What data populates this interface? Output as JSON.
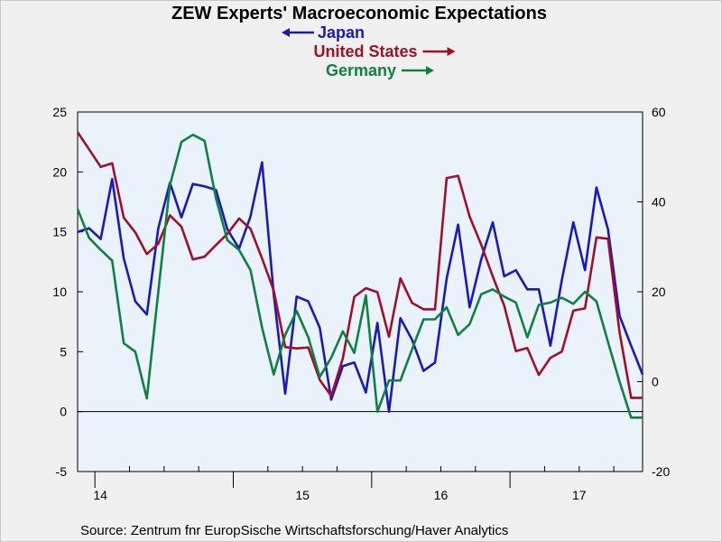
{
  "chart_data": {
    "type": "line",
    "title": "ZEW Experts' Macroeconomic Expectations",
    "source": "Source:  Zentrum fnr EuropSische Wirtschaftsforschung/Haver Analytics",
    "left_axis": {
      "ylim": [
        -5,
        25
      ],
      "ticks": [
        25,
        20,
        15,
        10,
        5,
        0,
        -5
      ]
    },
    "right_axis": {
      "ylim": [
        -20,
        60
      ],
      "ticks": [
        60,
        40,
        20,
        0,
        -20
      ]
    },
    "x_labels": [
      "14",
      "15",
      "16",
      "17"
    ],
    "x_range": [
      2013.875,
      2017.958
    ],
    "grid": false,
    "zero_line": true,
    "background": "#eaf2fc",
    "series": [
      {
        "name": "Japan",
        "axis": "left",
        "arrow": "left",
        "color": "#1a1ab4",
        "x": [
          2013.875,
          2013.958,
          2014.042,
          2014.125,
          2014.208,
          2014.292,
          2014.375,
          2014.458,
          2014.542,
          2014.625,
          2014.708,
          2014.792,
          2014.875,
          2014.958,
          2015.042,
          2015.125,
          2015.208,
          2015.292,
          2015.375,
          2015.458,
          2015.542,
          2015.625,
          2015.708,
          2015.792,
          2015.875,
          2015.958,
          2016.042,
          2016.125,
          2016.208,
          2016.292,
          2016.375,
          2016.458,
          2016.542,
          2016.625,
          2016.708,
          2016.792,
          2016.875,
          2016.958,
          2017.042,
          2017.125,
          2017.208,
          2017.292,
          2017.375,
          2017.458,
          2017.542,
          2017.625,
          2017.708,
          2017.792,
          2017.875,
          2017.958
        ],
        "values": [
          15.0,
          15.3,
          14.4,
          19.4,
          12.8,
          9.2,
          8.1,
          15.3,
          19.1,
          16.2,
          19.0,
          18.8,
          18.5,
          15.2,
          13.6,
          16.3,
          20.8,
          9.8,
          1.5,
          9.6,
          9.2,
          7.0,
          1.0,
          3.8,
          4.1,
          1.6,
          7.4,
          0.0,
          7.8,
          6.0,
          3.4,
          4.1,
          11.1,
          15.6,
          8.7,
          12.7,
          15.8,
          11.3,
          11.8,
          10.2,
          10.2,
          5.5,
          11.0,
          15.8,
          11.8,
          18.7,
          15.2,
          8.0,
          5.5,
          3.1
        ]
      },
      {
        "name": "United States",
        "axis": "right",
        "arrow": "right",
        "color": "#a0102a",
        "x": [
          2013.875,
          2013.958,
          2014.042,
          2014.125,
          2014.208,
          2014.292,
          2014.375,
          2014.458,
          2014.542,
          2014.625,
          2014.708,
          2014.792,
          2014.875,
          2014.958,
          2015.042,
          2015.125,
          2015.208,
          2015.292,
          2015.375,
          2015.458,
          2015.542,
          2015.625,
          2015.708,
          2015.792,
          2015.875,
          2015.958,
          2016.042,
          2016.125,
          2016.208,
          2016.292,
          2016.375,
          2016.458,
          2016.542,
          2016.625,
          2016.708,
          2016.792,
          2016.875,
          2016.958,
          2017.042,
          2017.125,
          2017.208,
          2017.292,
          2017.375,
          2017.458,
          2017.542,
          2017.625,
          2017.708,
          2017.792,
          2017.875,
          2017.958
        ],
        "values": [
          55.5,
          51.7,
          47.8,
          48.6,
          36.5,
          33.2,
          28.4,
          30.7,
          37.0,
          34.5,
          27.2,
          27.8,
          30.4,
          32.9,
          36.3,
          34.0,
          27.4,
          20.3,
          7.7,
          7.4,
          7.6,
          0.4,
          -3.2,
          5.2,
          18.9,
          20.8,
          19.9,
          10.0,
          23.0,
          17.5,
          16.1,
          16.1,
          45.3,
          45.8,
          36.7,
          30.5,
          23.4,
          16.9,
          6.8,
          7.5,
          1.5,
          5.3,
          6.7,
          15.8,
          16.3,
          32.1,
          31.8,
          11.0,
          -3.6,
          -3.6
        ]
      },
      {
        "name": "Germany",
        "axis": "left",
        "arrow": "right",
        "color": "#108040",
        "x": [
          2013.875,
          2013.958,
          2014.042,
          2014.125,
          2014.208,
          2014.292,
          2014.375,
          2014.458,
          2014.542,
          2014.625,
          2014.708,
          2014.792,
          2014.875,
          2014.958,
          2015.042,
          2015.125,
          2015.208,
          2015.292,
          2015.375,
          2015.458,
          2015.542,
          2015.625,
          2015.708,
          2015.792,
          2015.875,
          2015.958,
          2016.042,
          2016.125,
          2016.208,
          2016.292,
          2016.375,
          2016.458,
          2016.542,
          2016.625,
          2016.708,
          2016.792,
          2016.875,
          2016.958,
          2017.042,
          2017.125,
          2017.208,
          2017.292,
          2017.375,
          2017.458,
          2017.542,
          2017.625,
          2017.708,
          2017.792,
          2017.875,
          2017.958
        ],
        "values": [
          16.9,
          14.5,
          13.5,
          12.6,
          5.7,
          5.0,
          1.1,
          10.0,
          18.9,
          22.5,
          23.1,
          22.6,
          17.8,
          14.3,
          13.5,
          11.8,
          7.0,
          3.1,
          6.4,
          8.4,
          6.2,
          2.9,
          4.5,
          6.7,
          4.9,
          9.7,
          0.0,
          2.6,
          2.6,
          5.2,
          7.7,
          7.7,
          8.7,
          6.4,
          7.3,
          9.8,
          10.2,
          9.6,
          9.1,
          6.2,
          8.9,
          9.1,
          9.5,
          9.0,
          10.0,
          9.2,
          5.8,
          2.5,
          -0.5,
          -0.5
        ]
      }
    ]
  }
}
